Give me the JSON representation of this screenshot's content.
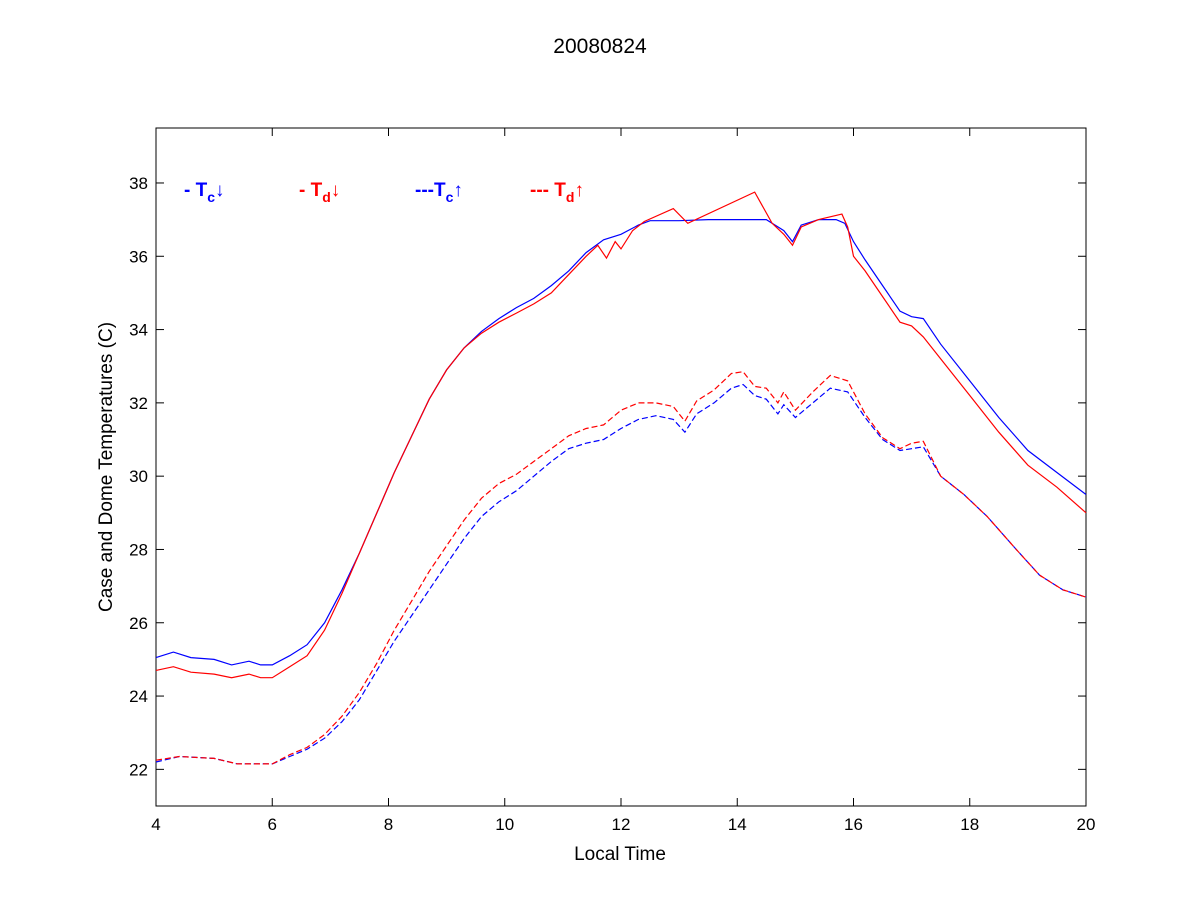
{
  "chart_data": {
    "type": "line",
    "title": "20080824",
    "xlabel": "Local Time",
    "ylabel": "Case and Dome Temperatures (C)",
    "xlim": [
      4,
      20
    ],
    "ylim": [
      21,
      39.5
    ],
    "xticks": [
      4,
      6,
      8,
      10,
      12,
      14,
      16,
      18,
      20
    ],
    "yticks": [
      22,
      24,
      26,
      28,
      30,
      32,
      34,
      36,
      38
    ],
    "grid": false,
    "legend": {
      "placement": "top-left",
      "entries": [
        {
          "prefix": "- T",
          "sub": "c",
          "arrow": "↓",
          "color": "#0000ff"
        },
        {
          "prefix": "- T",
          "sub": "d",
          "arrow": "↓",
          "color": "#ff0000"
        },
        {
          "prefix": "---T",
          "sub": "c",
          "arrow": "↑",
          "color": "#0000ff"
        },
        {
          "prefix": "--- T",
          "sub": "d",
          "arrow": "↑",
          "color": "#ff0000"
        }
      ]
    },
    "series": [
      {
        "color": "#0000ff",
        "style": "solid",
        "x": [
          4.0,
          4.3,
          4.6,
          5.0,
          5.3,
          5.6,
          5.8,
          6.0,
          6.3,
          6.6,
          6.9,
          7.2,
          7.5,
          7.8,
          8.1,
          8.4,
          8.7,
          9.0,
          9.3,
          9.6,
          9.9,
          10.2,
          10.5,
          10.8,
          11.1,
          11.4,
          11.7,
          12.0,
          12.3,
          12.5,
          13.0,
          13.5,
          14.0,
          14.5,
          14.8,
          14.95,
          15.1,
          15.4,
          15.7,
          15.85,
          16.0,
          16.2,
          16.5,
          16.8,
          17.0,
          17.2,
          17.5,
          18.0,
          18.5,
          19.0,
          19.5,
          20.0
        ],
        "y": [
          25.05,
          25.2,
          25.05,
          25.0,
          24.85,
          24.95,
          24.85,
          24.85,
          25.1,
          25.4,
          26.0,
          26.9,
          27.9,
          29.0,
          30.1,
          31.1,
          32.1,
          32.9,
          33.5,
          33.95,
          34.3,
          34.6,
          34.85,
          35.2,
          35.6,
          36.1,
          36.45,
          36.6,
          36.85,
          36.97,
          36.97,
          37.0,
          37.0,
          37.0,
          36.7,
          36.4,
          36.85,
          37.0,
          37.0,
          36.9,
          36.4,
          35.9,
          35.2,
          34.5,
          34.35,
          34.3,
          33.6,
          32.6,
          31.6,
          30.7,
          30.1,
          29.5
        ]
      },
      {
        "color": "#ff0000",
        "style": "solid",
        "x": [
          4.0,
          4.3,
          4.6,
          5.0,
          5.3,
          5.6,
          5.8,
          6.0,
          6.3,
          6.6,
          6.9,
          7.2,
          7.5,
          7.8,
          8.1,
          8.4,
          8.7,
          9.0,
          9.3,
          9.6,
          9.9,
          10.2,
          10.5,
          10.8,
          11.1,
          11.4,
          11.6,
          11.75,
          11.9,
          12.0,
          12.2,
          12.4,
          12.9,
          13.15,
          14.3,
          14.6,
          14.8,
          14.95,
          15.1,
          15.4,
          15.8,
          15.9,
          16.0,
          16.2,
          16.5,
          16.8,
          17.0,
          17.2,
          17.5,
          18.0,
          18.5,
          19.0,
          19.5,
          20.0
        ],
        "y": [
          24.7,
          24.8,
          24.65,
          24.6,
          24.5,
          24.6,
          24.5,
          24.5,
          24.8,
          25.1,
          25.8,
          26.8,
          27.9,
          29.0,
          30.1,
          31.1,
          32.1,
          32.9,
          33.5,
          33.9,
          34.2,
          34.45,
          34.7,
          35.0,
          35.5,
          36.0,
          36.3,
          35.95,
          36.4,
          36.2,
          36.7,
          36.95,
          37.3,
          36.9,
          37.75,
          36.9,
          36.6,
          36.3,
          36.8,
          37.0,
          37.15,
          36.8,
          36.0,
          35.6,
          34.9,
          34.2,
          34.1,
          33.8,
          33.2,
          32.2,
          31.2,
          30.3,
          29.7,
          29.0
        ]
      },
      {
        "color": "#0000ff",
        "style": "dashed",
        "x": [
          4.0,
          4.4,
          5.0,
          5.4,
          5.8,
          6.0,
          6.3,
          6.6,
          6.9,
          7.2,
          7.5,
          7.8,
          8.1,
          8.4,
          8.7,
          9.0,
          9.3,
          9.6,
          9.9,
          10.2,
          10.5,
          10.8,
          11.1,
          11.4,
          11.7,
          12.0,
          12.3,
          12.6,
          12.9,
          13.1,
          13.3,
          13.6,
          13.9,
          14.1,
          14.3,
          14.5,
          14.7,
          14.8,
          15.0,
          15.3,
          15.6,
          15.9,
          16.2,
          16.5,
          16.8,
          17.0,
          17.2,
          17.5,
          17.9,
          18.3,
          18.8,
          19.2,
          19.6,
          20.0
        ],
        "y": [
          22.2,
          22.35,
          22.3,
          22.15,
          22.15,
          22.15,
          22.35,
          22.55,
          22.85,
          23.3,
          23.9,
          24.7,
          25.5,
          26.2,
          26.9,
          27.6,
          28.3,
          28.9,
          29.3,
          29.6,
          30.0,
          30.4,
          30.75,
          30.9,
          31.0,
          31.3,
          31.55,
          31.65,
          31.55,
          31.2,
          31.7,
          32.0,
          32.4,
          32.5,
          32.2,
          32.1,
          31.7,
          31.95,
          31.6,
          32.0,
          32.4,
          32.3,
          31.6,
          31.0,
          30.7,
          30.75,
          30.8,
          30.0,
          29.5,
          28.9,
          28.0,
          27.3,
          26.9,
          26.7
        ]
      },
      {
        "color": "#ff0000",
        "style": "dashed",
        "x": [
          4.0,
          4.4,
          5.0,
          5.4,
          5.8,
          6.0,
          6.3,
          6.6,
          6.9,
          7.2,
          7.5,
          7.8,
          8.1,
          8.4,
          8.7,
          9.0,
          9.3,
          9.6,
          9.9,
          10.2,
          10.5,
          10.8,
          11.1,
          11.4,
          11.7,
          12.0,
          12.3,
          12.6,
          12.9,
          13.1,
          13.3,
          13.6,
          13.9,
          14.1,
          14.3,
          14.5,
          14.7,
          14.8,
          15.0,
          15.3,
          15.6,
          15.9,
          16.2,
          16.5,
          16.8,
          17.0,
          17.2,
          17.5,
          17.9,
          18.3,
          18.8,
          19.2,
          19.6,
          20.0
        ],
        "y": [
          22.25,
          22.35,
          22.3,
          22.15,
          22.15,
          22.15,
          22.4,
          22.6,
          22.95,
          23.45,
          24.1,
          24.9,
          25.8,
          26.6,
          27.4,
          28.1,
          28.8,
          29.4,
          29.8,
          30.05,
          30.4,
          30.75,
          31.1,
          31.3,
          31.4,
          31.8,
          32.0,
          32.0,
          31.9,
          31.5,
          32.05,
          32.35,
          32.8,
          32.85,
          32.45,
          32.4,
          32.0,
          32.3,
          31.8,
          32.3,
          32.75,
          32.6,
          31.7,
          31.05,
          30.75,
          30.9,
          30.95,
          30.0,
          29.5,
          28.9,
          28.0,
          27.3,
          26.9,
          26.7
        ]
      }
    ]
  }
}
